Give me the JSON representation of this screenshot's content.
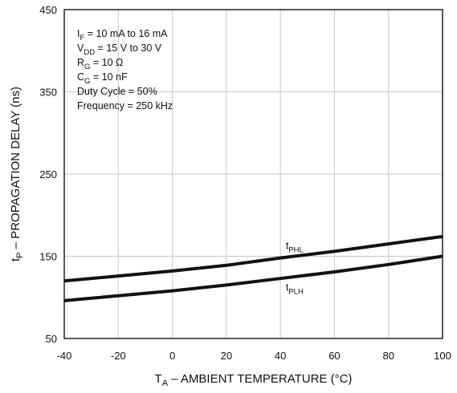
{
  "chart_data": {
    "type": "line",
    "xlabel_main": "T",
    "xlabel_sub": "A",
    "xlabel_rest": " – AMBIENT TEMPERATURE (°C)",
    "ylabel_main": "t",
    "ylabel_sub": "P",
    "ylabel_rest": " – PROPAGATION DELAY (ns)",
    "xlim": [
      -40,
      100
    ],
    "ylim": [
      50,
      450
    ],
    "xticks": [
      -40,
      -20,
      0,
      20,
      40,
      60,
      80,
      100
    ],
    "yticks": [
      50,
      150,
      250,
      350,
      450
    ],
    "grid": true,
    "conditions": [
      {
        "main": "I",
        "sub": "F",
        "rest": " = 10 mA to 16 mA"
      },
      {
        "main": "V",
        "sub": "DD",
        "rest": " = 15 V to 30 V"
      },
      {
        "main": "R",
        "sub": "G",
        "rest": " = 10 Ω"
      },
      {
        "main": "C",
        "sub": "G",
        "rest": " = 10 nF"
      },
      {
        "main": "Duty Cycle = 50%",
        "sub": "",
        "rest": ""
      },
      {
        "main": "Frequency = 250 kHz",
        "sub": "",
        "rest": ""
      }
    ],
    "series": [
      {
        "name_main": "t",
        "name_sub": "PHL",
        "label_at": [
          42,
          159
        ],
        "x": [
          -40,
          -20,
          0,
          20,
          40,
          60,
          80,
          100
        ],
        "y": [
          120,
          126,
          132,
          139,
          148,
          156,
          165,
          174
        ]
      },
      {
        "name_main": "t",
        "name_sub": "PLH",
        "label_at": [
          42,
          108
        ],
        "x": [
          -40,
          -20,
          0,
          20,
          40,
          60,
          80,
          100
        ],
        "y": [
          96,
          102,
          108,
          115,
          123,
          131,
          140,
          150
        ]
      }
    ]
  }
}
